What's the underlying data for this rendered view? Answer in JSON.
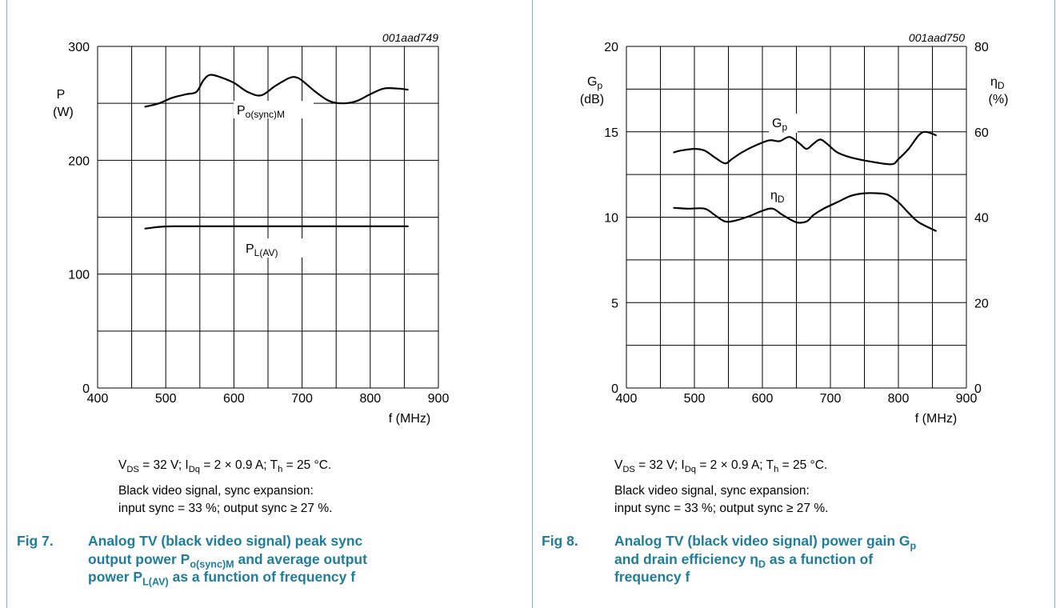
{
  "figures": [
    {
      "code": "001aad749",
      "left_axis": {
        "symbol": "P",
        "unit": "(W)"
      },
      "xlabel": "f (MHz)",
      "notes": {
        "conditions": [
          "V",
          "DS",
          " = 32 V; I",
          "Dq",
          " = 2 × 0.9 A; T",
          "h",
          " = 25 °C."
        ],
        "line2": "Black video signal, sync expansion:",
        "line3": "input sync = 33 %; output sync ≥ 27 %."
      },
      "caption": {
        "number": "Fig 7.",
        "line1": "Analog TV (black video signal) peak sync",
        "line2_a": "output power P",
        "line2_sub": "o(sync)M",
        "line2_b": " and average output",
        "line3_a": "power P",
        "line3_sub": "L(AV)",
        "line3_b": " as a function of frequency f"
      },
      "series_labels": [
        {
          "main": "P",
          "sub": "o(sync)M"
        },
        {
          "main": "P",
          "sub": "L(AV)"
        }
      ]
    },
    {
      "code": "001aad750",
      "left_axis": {
        "symbol": "G",
        "sub": "p",
        "unit": "(dB)"
      },
      "right_axis": {
        "symbol": "η",
        "sub": "D",
        "unit": "(%)"
      },
      "xlabel": "f (MHz)",
      "notes": {
        "conditions": [
          "V",
          "DS",
          " = 32 V; I",
          "Dq",
          " = 2 × 0.9 A; T",
          "h",
          " = 25 °C."
        ],
        "line2": "Black video signal, sync expansion:",
        "line3": "input sync = 33 %; output sync ≥ 27 %."
      },
      "caption": {
        "number": "Fig 8.",
        "line1_a": "Analog TV (black video signal) power gain G",
        "line1_sub": "p",
        "line2_a": "and drain efficiency η",
        "line2_sub": "D",
        "line2_b": " as a function of",
        "line3": "frequency f"
      },
      "series_labels": [
        {
          "main": "G",
          "sub": "p"
        },
        {
          "main": "η",
          "sub": "D"
        }
      ]
    }
  ],
  "colors": {
    "caption": "#1f7d9a",
    "frame": "#7fb0c0",
    "curve": "#000000",
    "grid": "#000000"
  },
  "chart_data": [
    {
      "type": "line",
      "xlim": [
        400,
        900
      ],
      "xticks": [
        400,
        500,
        600,
        700,
        800,
        900
      ],
      "ylim": [
        0,
        300
      ],
      "yticks": [
        0,
        100,
        200,
        300
      ],
      "grid": true,
      "series": [
        {
          "name": "Po(sync)M",
          "x": [
            470,
            490,
            510,
            530,
            545,
            555,
            565,
            580,
            600,
            620,
            640,
            660,
            680,
            690,
            700,
            720,
            740,
            760,
            780,
            800,
            820,
            840,
            855
          ],
          "y": [
            247,
            250,
            255,
            258,
            260,
            270,
            275,
            273,
            268,
            260,
            257,
            265,
            272,
            273,
            270,
            260,
            252,
            250,
            252,
            258,
            263,
            263,
            262
          ]
        },
        {
          "name": "PL(AV)",
          "x": [
            470,
            490,
            510,
            550,
            600,
            650,
            700,
            750,
            800,
            855
          ],
          "y": [
            140,
            141.5,
            142,
            142,
            142,
            142,
            142,
            142,
            142,
            142
          ]
        }
      ]
    },
    {
      "type": "line",
      "xlim": [
        400,
        900
      ],
      "xticks": [
        400,
        500,
        600,
        700,
        800,
        900
      ],
      "ylim": [
        0,
        20
      ],
      "yticks": [
        0,
        5,
        10,
        15,
        20
      ],
      "y2lim": [
        0,
        80
      ],
      "y2ticks": [
        0,
        20,
        40,
        60,
        80
      ],
      "grid": true,
      "series": [
        {
          "name": "Gp",
          "axis": "left",
          "x": [
            470,
            480,
            500,
            515,
            530,
            545,
            555,
            570,
            590,
            610,
            625,
            640,
            655,
            665,
            675,
            685,
            695,
            710,
            730,
            760,
            790,
            800,
            815,
            830,
            840,
            855
          ],
          "y": [
            13.8,
            13.9,
            14.0,
            13.9,
            13.5,
            13.15,
            13.4,
            13.8,
            14.2,
            14.5,
            14.45,
            14.7,
            14.3,
            14.0,
            14.3,
            14.55,
            14.3,
            13.8,
            13.5,
            13.25,
            13.1,
            13.4,
            14.0,
            14.8,
            15.0,
            14.8
          ]
        },
        {
          "name": "ηD",
          "axis": "right",
          "x": [
            470,
            490,
            515,
            530,
            545,
            560,
            580,
            600,
            615,
            630,
            650,
            665,
            675,
            690,
            710,
            730,
            750,
            770,
            785,
            800,
            815,
            830,
            855
          ],
          "y": [
            42.2,
            42.0,
            42.0,
            40.5,
            39.0,
            39.2,
            40.2,
            41.5,
            42.0,
            40.5,
            38.8,
            39.0,
            40.5,
            42.0,
            43.5,
            45.0,
            45.6,
            45.6,
            45.2,
            43.5,
            41.0,
            38.8,
            36.8
          ]
        }
      ]
    }
  ]
}
